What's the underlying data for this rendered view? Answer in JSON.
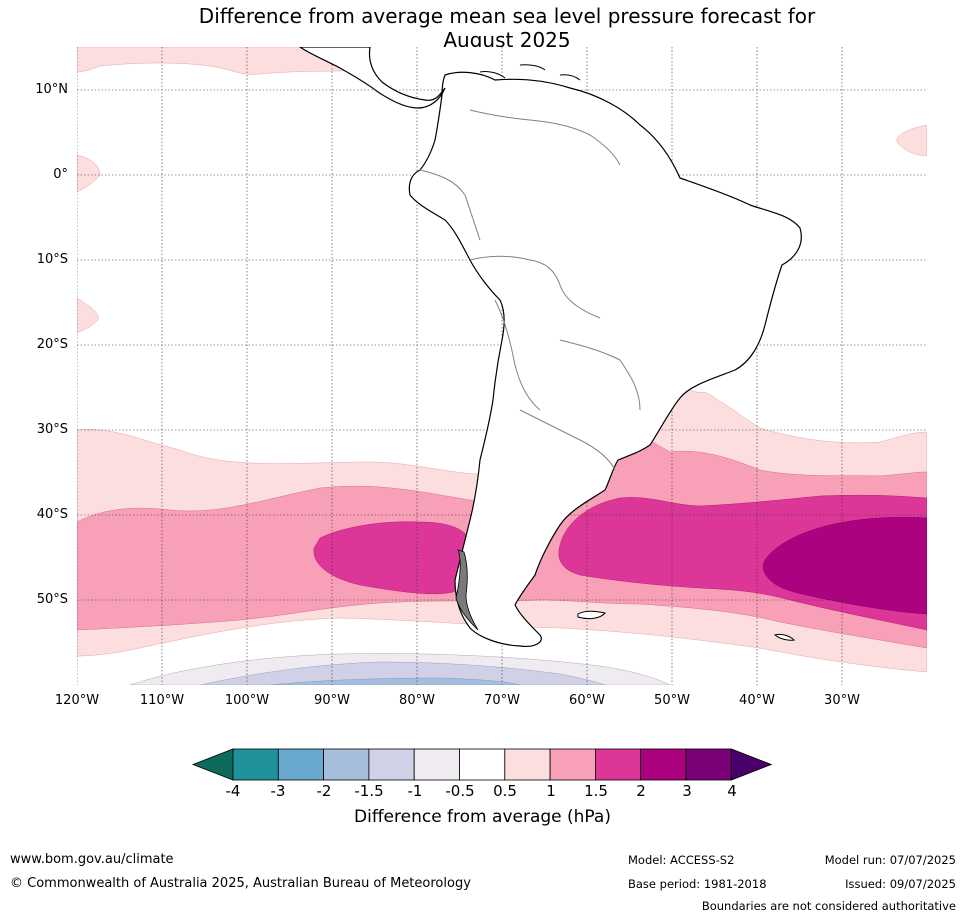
{
  "title_line1": "Difference from average mean sea level pressure forecast for",
  "title_line2": "August 2025",
  "map": {
    "region": "South America",
    "lat_labels": [
      "10°N",
      "0°",
      "10°S",
      "20°S",
      "30°S",
      "40°S",
      "50°S"
    ],
    "lon_labels": [
      "120°W",
      "110°W",
      "100°W",
      "90°W",
      "80°W",
      "70°W",
      "60°W",
      "50°W",
      "40°W",
      "30°W"
    ],
    "shading_colors": {
      "0.5_to_1": "#fcdede",
      "1_to_1.5": "#f9a0b9",
      "1.5_to_2": "#dd3699",
      "2_to_3": "#ad027f",
      "-1_to_-0.5": "#efebf0",
      "-1.5_to_-1": "#d0d1e6",
      "-2_to_-1.5": "#a6bddb"
    }
  },
  "colorbar": {
    "ticks": [
      "-4",
      "-3",
      "-2",
      "-1.5",
      "-1",
      "-0.5",
      "0.5",
      "1",
      "1.5",
      "2",
      "3",
      "4"
    ],
    "colors": [
      "#0d6b5c",
      "#1f929c",
      "#67a9cf",
      "#a6bddb",
      "#d0d1e6",
      "#efebf0",
      "#ffffff",
      "#fcdede",
      "#f9a0b9",
      "#dd3699",
      "#ad027f",
      "#7a0177",
      "#49006a"
    ],
    "label": "Difference from average (hPa)"
  },
  "footer": {
    "website": "www.bom.gov.au/climate",
    "copyright": "© Commonwealth of Australia 2025, Australian Bureau of Meteorology",
    "model": "Model: ACCESS-S2",
    "base_period": "Base period: 1981-2018",
    "model_run": "Model run: 07/07/2025",
    "issued": "Issued: 09/07/2025",
    "disclaimer": "Boundaries are not considered authoritative"
  }
}
